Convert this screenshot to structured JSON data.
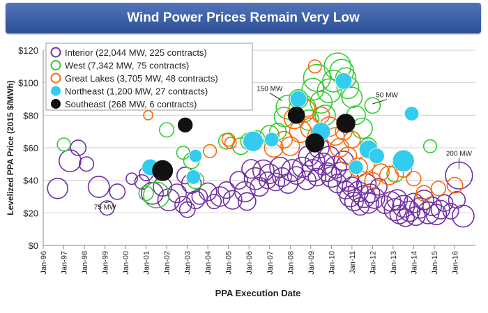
{
  "chart_data": {
    "type": "scatter",
    "title": "Wind Power Prices Remain Very Low",
    "xlabel": "PPA Execution Date",
    "ylabel": "Levelized PPA Price (2015 $/MWh)",
    "ylim": [
      0,
      120
    ],
    "xlim": [
      1996,
      2017
    ],
    "yticks": [
      "$0",
      "$20",
      "$40",
      "$60",
      "$80",
      "$100",
      "$120"
    ],
    "xticks": [
      "Jan-96",
      "Jan-97",
      "Jan-98",
      "Jan-99",
      "Jan-00",
      "Jan-01",
      "Jan-02",
      "Jan-03",
      "Jan-04",
      "Jan-05",
      "Jan-06",
      "Jan-07",
      "Jan-08",
      "Jan-09",
      "Jan-10",
      "Jan-11",
      "Jan-12",
      "Jan-13",
      "Jan-14",
      "Jan-15",
      "Jan-16"
    ],
    "grid": "horizontal",
    "legend_position": "top-left",
    "series": [
      {
        "name": "Interior (22,044 MW, 225 contracts)",
        "color": "#7030a0",
        "style": "open",
        "points": [
          [
            1996.7,
            35,
            100
          ],
          [
            1997.3,
            52,
            120
          ],
          [
            1997.7,
            60,
            50
          ],
          [
            1998.1,
            50,
            40
          ],
          [
            1998.7,
            36,
            110
          ],
          [
            1999.1,
            23,
            40
          ],
          [
            1999.6,
            33,
            50
          ],
          [
            2000.3,
            41,
            20
          ],
          [
            2000.8,
            39,
            40
          ],
          [
            2001.0,
            44,
            35
          ],
          [
            2001.3,
            32,
            120
          ],
          [
            2001.8,
            36,
            80
          ],
          [
            2002.1,
            28,
            120
          ],
          [
            2002.5,
            32,
            80
          ],
          [
            2002.8,
            25,
            60
          ],
          [
            2002.9,
            43,
            60
          ],
          [
            2003.0,
            22,
            50
          ],
          [
            2003.2,
            38,
            90
          ],
          [
            2003.4,
            28,
            70
          ],
          [
            2003.6,
            30,
            50
          ],
          [
            2004.0,
            33,
            70
          ],
          [
            2004.3,
            27,
            40
          ],
          [
            2004.6,
            30,
            90
          ],
          [
            2004.9,
            34,
            60
          ],
          [
            2005.2,
            28,
            80
          ],
          [
            2005.5,
            40,
            70
          ],
          [
            2005.8,
            33,
            100
          ],
          [
            2005.9,
            27,
            70
          ],
          [
            2006.1,
            47,
            80
          ],
          [
            2006.3,
            41,
            120
          ],
          [
            2006.5,
            36,
            80
          ],
          [
            2006.7,
            46,
            110
          ],
          [
            2006.9,
            40,
            60
          ],
          [
            2007.0,
            44,
            90
          ],
          [
            2007.3,
            39,
            70
          ],
          [
            2007.5,
            48,
            100
          ],
          [
            2007.6,
            42,
            80
          ],
          [
            2007.9,
            38,
            90
          ],
          [
            2008.1,
            46,
            120
          ],
          [
            2008.3,
            43,
            70
          ],
          [
            2008.6,
            48,
            100
          ],
          [
            2008.8,
            40,
            80
          ],
          [
            2008.9,
            55,
            100
          ],
          [
            2009.1,
            46,
            120
          ],
          [
            2009.2,
            52,
            90
          ],
          [
            2009.3,
            42,
            70
          ],
          [
            2009.4,
            60,
            100
          ],
          [
            2009.6,
            50,
            120
          ],
          [
            2009.8,
            45,
            80
          ],
          [
            2009.9,
            55,
            90
          ],
          [
            2010.0,
            42,
            100
          ],
          [
            2010.2,
            48,
            120
          ],
          [
            2010.3,
            38,
            80
          ],
          [
            2010.5,
            45,
            100
          ],
          [
            2010.6,
            52,
            90
          ],
          [
            2010.7,
            34,
            70
          ],
          [
            2010.8,
            40,
            120
          ],
          [
            2010.9,
            30,
            100
          ],
          [
            2011.0,
            36,
            90
          ],
          [
            2011.1,
            27,
            80
          ],
          [
            2011.3,
            33,
            100
          ],
          [
            2011.4,
            24,
            70
          ],
          [
            2011.6,
            30,
            120
          ],
          [
            2011.7,
            38,
            90
          ],
          [
            2011.8,
            26,
            100
          ],
          [
            2011.9,
            32,
            80
          ],
          [
            2012.1,
            29,
            100
          ],
          [
            2012.3,
            36,
            60
          ],
          [
            2012.6,
            25,
            70
          ],
          [
            2012.9,
            27,
            90
          ],
          [
            2013.1,
            22,
            120
          ],
          [
            2013.2,
            28,
            100
          ],
          [
            2013.3,
            19,
            80
          ],
          [
            2013.5,
            24,
            120
          ],
          [
            2013.6,
            17,
            70
          ],
          [
            2013.8,
            21,
            100
          ],
          [
            2014.0,
            26,
            90
          ],
          [
            2014.1,
            18,
            80
          ],
          [
            2014.3,
            23,
            100
          ],
          [
            2014.5,
            28,
            90
          ],
          [
            2014.7,
            20,
            120
          ],
          [
            2014.9,
            24,
            80
          ],
          [
            2015.1,
            19,
            100
          ],
          [
            2015.3,
            22,
            80
          ],
          [
            2015.5,
            26,
            60
          ],
          [
            2015.8,
            21,
            50
          ],
          [
            2016.1,
            28,
            60
          ],
          [
            2016.4,
            18,
            120
          ],
          [
            2016.2,
            43,
            200
          ]
        ]
      },
      {
        "name": "West (7,342 MW, 75 contracts)",
        "color": "#33cc33",
        "style": "open",
        "points": [
          [
            1997.0,
            62,
            30
          ],
          [
            2001.0,
            32,
            40
          ],
          [
            2001.5,
            31,
            180
          ],
          [
            2002.0,
            71,
            40
          ],
          [
            2002.8,
            57,
            30
          ],
          [
            2003.2,
            52,
            50
          ],
          [
            2003.4,
            40,
            60
          ],
          [
            2004.9,
            64,
            50
          ],
          [
            2005.6,
            61,
            60
          ],
          [
            2006.0,
            64,
            60
          ],
          [
            2006.4,
            66,
            40
          ],
          [
            2007.0,
            68,
            80
          ],
          [
            2007.4,
            70,
            60
          ],
          [
            2007.7,
            79,
            90
          ],
          [
            2007.9,
            85,
            150
          ],
          [
            2008.4,
            90,
            80
          ],
          [
            2008.6,
            84,
            200
          ],
          [
            2008.9,
            77,
            100
          ],
          [
            2009.1,
            96,
            120
          ],
          [
            2009.3,
            103,
            200
          ],
          [
            2009.5,
            88,
            120
          ],
          [
            2009.7,
            80,
            100
          ],
          [
            2009.9,
            95,
            150
          ],
          [
            2010.1,
            101,
            120
          ],
          [
            2010.3,
            110,
            200
          ],
          [
            2010.5,
            107,
            150
          ],
          [
            2010.7,
            103,
            100
          ],
          [
            2010.8,
            97,
            120
          ],
          [
            2011.0,
            91,
            100
          ],
          [
            2011.2,
            80,
            80
          ],
          [
            2011.5,
            72,
            100
          ],
          [
            2011.8,
            61,
            60
          ],
          [
            2012.0,
            86,
            50
          ],
          [
            2013.1,
            44,
            60
          ],
          [
            2014.8,
            61,
            30
          ]
        ]
      },
      {
        "name": "Great Lakes (3,705 MW, 48 contracts)",
        "color": "#ff6600",
        "style": "open",
        "points": [
          [
            2001.1,
            80,
            10
          ],
          [
            2004.1,
            58,
            30
          ],
          [
            2005.0,
            65,
            30
          ],
          [
            2005.1,
            63,
            20
          ],
          [
            2007.2,
            60,
            80
          ],
          [
            2007.7,
            65,
            60
          ],
          [
            2008.0,
            61,
            80
          ],
          [
            2008.2,
            78,
            100
          ],
          [
            2008.5,
            70,
            120
          ],
          [
            2008.8,
            84,
            60
          ],
          [
            2009.0,
            72,
            100
          ],
          [
            2009.3,
            67,
            80
          ],
          [
            2009.5,
            80,
            60
          ],
          [
            2009.2,
            110,
            30
          ],
          [
            2009.9,
            73,
            90
          ],
          [
            2010.2,
            67,
            70
          ],
          [
            2010.4,
            60,
            80
          ],
          [
            2010.6,
            70,
            60
          ],
          [
            2010.8,
            55,
            70
          ],
          [
            2011.0,
            65,
            60
          ],
          [
            2011.3,
            48,
            80
          ],
          [
            2011.7,
            50,
            60
          ],
          [
            2012.0,
            40,
            50
          ],
          [
            2012.4,
            45,
            60
          ],
          [
            2012.8,
            43,
            80
          ],
          [
            2013.5,
            47,
            60
          ],
          [
            2014.0,
            41,
            40
          ],
          [
            2014.5,
            32,
            50
          ],
          [
            2015.2,
            35,
            40
          ],
          [
            2016.0,
            37,
            50
          ]
        ]
      },
      {
        "name": "Northeast (1,200 MW, 27 contracts)",
        "color": "#33ccee",
        "style": "filled",
        "points": [
          [
            2001.2,
            48,
            60
          ],
          [
            2003.4,
            55,
            30
          ],
          [
            2003.3,
            42,
            40
          ],
          [
            2006.2,
            64,
            100
          ],
          [
            2007.1,
            65,
            40
          ],
          [
            2008.4,
            90,
            60
          ],
          [
            2009.5,
            70,
            80
          ],
          [
            2010.6,
            101,
            60
          ],
          [
            2011.2,
            48,
            40
          ],
          [
            2011.8,
            59,
            80
          ],
          [
            2012.2,
            55,
            50
          ],
          [
            2013.5,
            52,
            120
          ],
          [
            2013.9,
            81,
            40
          ]
        ]
      },
      {
        "name": "Southeast (268 MW, 6 contracts)",
        "color": "#111111",
        "style": "filled",
        "points": [
          [
            2001.8,
            46,
            100
          ],
          [
            2002.9,
            74,
            40
          ],
          [
            2008.3,
            80,
            60
          ],
          [
            2009.2,
            63,
            80
          ],
          [
            2010.7,
            75,
            80
          ]
        ]
      }
    ],
    "annotations": [
      {
        "text": "75 MW",
        "x": 1999.0,
        "y": 22
      },
      {
        "text": "150 MW",
        "x": 2007.0,
        "y": 95
      },
      {
        "text": "50 MW",
        "x": 2012.7,
        "y": 91
      },
      {
        "text": "200 MW",
        "x": 2016.2,
        "y": 55
      }
    ]
  }
}
